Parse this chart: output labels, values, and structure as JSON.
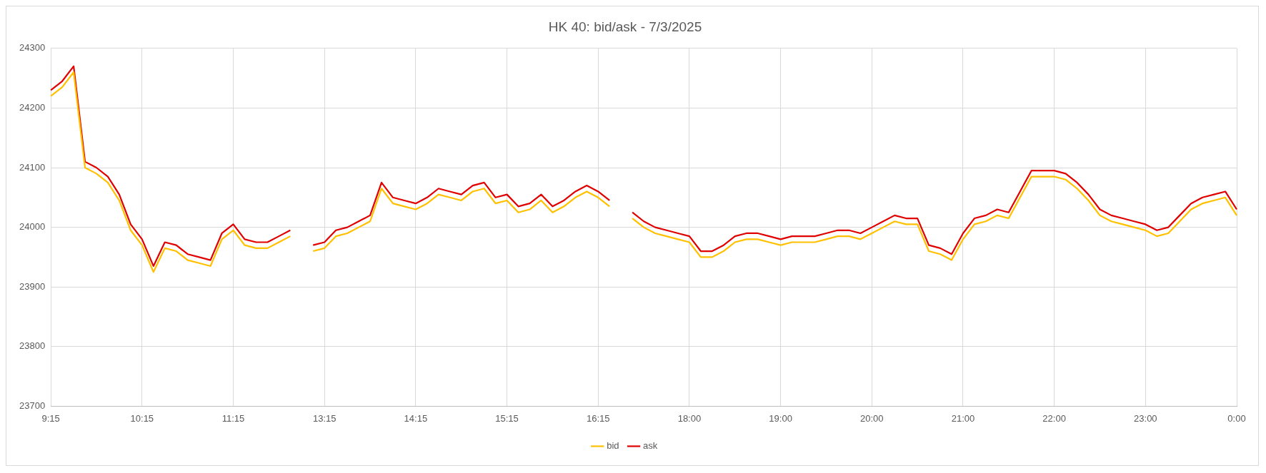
{
  "chart_data": {
    "type": "line",
    "title": "HK 40: bid/ask - 7/3/2025",
    "categories": [
      "9:15",
      null,
      null,
      null,
      null,
      null,
      null,
      null,
      "10:15",
      null,
      null,
      null,
      null,
      null,
      null,
      null,
      "11:15",
      null,
      null,
      null,
      null,
      null,
      null,
      null,
      "13:15",
      null,
      null,
      null,
      null,
      null,
      null,
      null,
      "14:15",
      null,
      null,
      null,
      null,
      null,
      null,
      null,
      "15:15",
      null,
      null,
      null,
      null,
      null,
      null,
      null,
      "16:15",
      null,
      null,
      null,
      null,
      null,
      null,
      null,
      "18:00",
      null,
      null,
      null,
      null,
      null,
      null,
      null,
      "19:00",
      null,
      null,
      null,
      null,
      null,
      null,
      null,
      "20:00",
      null,
      null,
      null,
      null,
      null,
      null,
      null,
      "21:00",
      null,
      null,
      null,
      null,
      null,
      null,
      null,
      "22:00",
      null,
      null,
      null,
      null,
      null,
      null,
      null,
      "23:00",
      null,
      null,
      null,
      null,
      null,
      null,
      null,
      "0:00"
    ],
    "series": [
      {
        "name": "bid",
        "color": "#ffc000",
        "values": [
          24220,
          24235,
          24260,
          24100,
          24090,
          24075,
          24045,
          23995,
          23970,
          23925,
          23965,
          23960,
          23945,
          23940,
          23935,
          23980,
          23995,
          23970,
          23965,
          23965,
          23975,
          23985,
          null,
          23960,
          23965,
          23985,
          23990,
          24000,
          24010,
          24065,
          24040,
          24035,
          24030,
          24040,
          24055,
          24050,
          24045,
          24060,
          24065,
          24040,
          24045,
          24025,
          24030,
          24045,
          24025,
          24035,
          24050,
          24060,
          24050,
          24035,
          null,
          24015,
          24000,
          23990,
          23985,
          23980,
          23975,
          23950,
          23950,
          23960,
          23975,
          23980,
          23980,
          23975,
          23970,
          23975,
          23975,
          23975,
          23980,
          23985,
          23985,
          23980,
          23990,
          24000,
          24010,
          24005,
          24005,
          23960,
          23955,
          23945,
          23980,
          24005,
          24010,
          24020,
          24015,
          24050,
          24085,
          24085,
          24085,
          24080,
          24065,
          24045,
          24020,
          24010,
          24005,
          24000,
          23995,
          23985,
          23990,
          24010,
          24030,
          24040,
          24045,
          24050,
          24020
        ]
      },
      {
        "name": "ask",
        "color": "#e00000",
        "values": [
          24230,
          24245,
          24270,
          24110,
          24100,
          24085,
          24055,
          24005,
          23980,
          23935,
          23975,
          23970,
          23955,
          23950,
          23945,
          23990,
          24005,
          23980,
          23975,
          23975,
          23985,
          23995,
          null,
          23970,
          23975,
          23995,
          24000,
          24010,
          24020,
          24075,
          24050,
          24045,
          24040,
          24050,
          24065,
          24060,
          24055,
          24070,
          24075,
          24050,
          24055,
          24035,
          24040,
          24055,
          24035,
          24045,
          24060,
          24070,
          24060,
          24045,
          null,
          24025,
          24010,
          24000,
          23995,
          23990,
          23985,
          23960,
          23960,
          23970,
          23985,
          23990,
          23990,
          23985,
          23980,
          23985,
          23985,
          23985,
          23990,
          23995,
          23995,
          23990,
          24000,
          24010,
          24020,
          24015,
          24015,
          23970,
          23965,
          23955,
          23990,
          24015,
          24020,
          24030,
          24025,
          24060,
          24095,
          24095,
          24095,
          24090,
          24075,
          24055,
          24030,
          24020,
          24015,
          24010,
          24005,
          23995,
          24000,
          24020,
          24040,
          24050,
          24055,
          24060,
          24030
        ]
      }
    ],
    "ylim": [
      23700,
      24300
    ],
    "yticks": [
      23700,
      23800,
      23900,
      24000,
      24100,
      24200,
      24300
    ],
    "grid": true,
    "legend": "bottom"
  }
}
